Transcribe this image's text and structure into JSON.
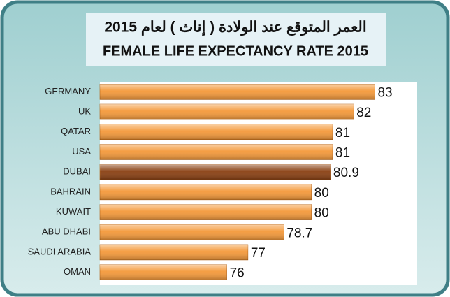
{
  "chart_data": {
    "type": "barh",
    "title": "العمر المتوقع عند الولادة ( إناث ) لعام 2015",
    "subtitle": "FEMALE LIFE EXPECTANCY RATE 2015",
    "categories": [
      "GERMANY",
      "UK",
      "QATAR",
      "USA",
      "DUBAI",
      "BAHRAIN",
      "KUWAIT",
      "ABU DHABI",
      "SAUDI ARABIA",
      "OMAN"
    ],
    "values": [
      83,
      82,
      81,
      81,
      80.9,
      80,
      80,
      78.7,
      77,
      76
    ],
    "colors": [
      "#f4993a",
      "#f4993a",
      "#f4993a",
      "#f4993a",
      "#8a4012",
      "#f4993a",
      "#f4993a",
      "#f4993a",
      "#f4993a",
      "#f4993a"
    ],
    "xlim": [
      70,
      85
    ]
  }
}
